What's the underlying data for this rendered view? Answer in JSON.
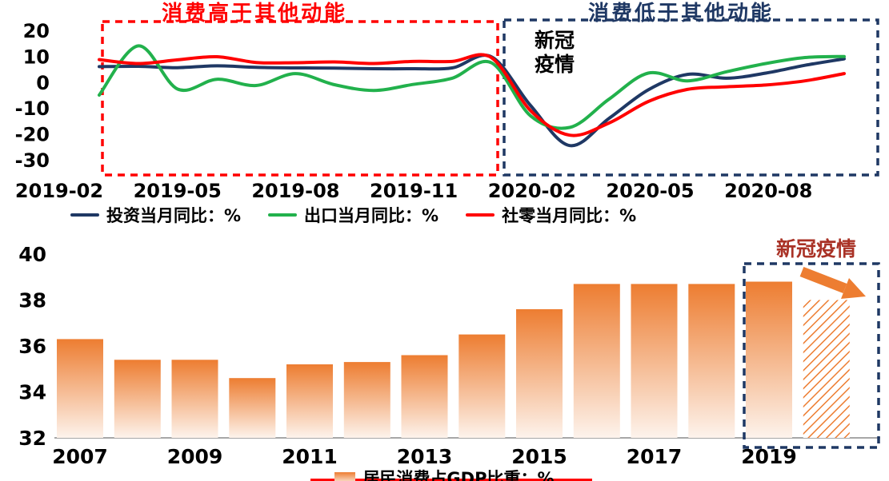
{
  "page": {
    "background": "#ffffff",
    "accent_red": "#FF0000",
    "accent_navy": "#1F3864",
    "accent_orange": "#ED7D31"
  },
  "chart_data": [
    {
      "type": "line",
      "title_left": "消费高于其他动能",
      "title_left_color": "#FF0000",
      "title_right": "消费低于其他动能",
      "title_right_color": "#1F3864",
      "annotation_covid": "新冠\n疫情",
      "x": [
        "2019-03",
        "2019-04",
        "2019-05",
        "2019-06",
        "2019-07",
        "2019-08",
        "2019-09",
        "2019-10",
        "2019-11",
        "2019-12",
        "2020-01",
        "2020-02",
        "2020-03",
        "2020-04",
        "2020-05",
        "2020-06",
        "2020-07",
        "2020-08",
        "2020-09",
        "2020-10"
      ],
      "x_tick_labels": [
        "2019-02",
        "2019-05",
        "2019-08",
        "2019-11",
        "2020-02",
        "2020-05",
        "2020-08"
      ],
      "y_ticks": [
        20,
        10,
        0,
        -10,
        -20,
        -30
      ],
      "ylim": [
        -35,
        22
      ],
      "grid": false,
      "legend_position": "bottom",
      "series": [
        {
          "key": "investment",
          "name": "投资当月同比：%",
          "color": "#1F3864",
          "values": [
            6.0,
            6.1,
            5.6,
            6.3,
            5.7,
            5.5,
            5.4,
            5.2,
            5.2,
            5.5,
            9.8,
            -9.0,
            -24.5,
            -14.0,
            -3.0,
            3.0,
            1.5,
            3.5,
            6.5,
            9.0
          ]
        },
        {
          "key": "export",
          "name": "出口当月同比：%",
          "color": "#22B14C",
          "values": [
            -5.0,
            14.0,
            -2.7,
            1.1,
            -1.3,
            3.3,
            -1.0,
            -3.2,
            -0.9,
            1.5,
            7.5,
            -13.0,
            -17.5,
            -6.6,
            3.5,
            0.5,
            4.0,
            7.2,
            9.5,
            9.9
          ]
        },
        {
          "key": "retail",
          "name": "社零当月同比：%",
          "color": "#FF0000",
          "values": [
            8.7,
            7.2,
            8.6,
            9.8,
            7.6,
            7.5,
            7.8,
            7.2,
            8.0,
            8.0,
            9.5,
            -11.0,
            -20.5,
            -15.8,
            -7.5,
            -2.8,
            -1.8,
            -1.1,
            0.5,
            3.3
          ]
        }
      ],
      "highlight_boxes": [
        {
          "key": "pre-covid",
          "color": "#FF0000"
        },
        {
          "key": "covid",
          "color": "#1F3864"
        }
      ]
    },
    {
      "type": "bar",
      "legend_label": "居民消费占GDP比重：%",
      "annotation_covid": "新冠疫情",
      "annotation_color": "#A93226",
      "categories": [
        "2007",
        "2008",
        "2009",
        "2010",
        "2011",
        "2012",
        "2013",
        "2014",
        "2015",
        "2016",
        "2017",
        "2018",
        "2019",
        "2020"
      ],
      "values": [
        36.3,
        35.4,
        35.4,
        34.6,
        35.2,
        35.3,
        35.6,
        36.5,
        37.6,
        38.7,
        38.7,
        38.7,
        38.8,
        38.0
      ],
      "x_tick_labels": [
        "2007",
        "2009",
        "2011",
        "2013",
        "2015",
        "2017",
        "2019"
      ],
      "y_ticks": [
        40,
        38,
        36,
        34,
        32
      ],
      "ylim": [
        32,
        40
      ],
      "grid": false,
      "bar_color_top": "#ED7D31",
      "bar_color_bottom": "#FDF3EC",
      "last_bar_hatched": true,
      "highlight_box_color": "#1F3864"
    }
  ]
}
